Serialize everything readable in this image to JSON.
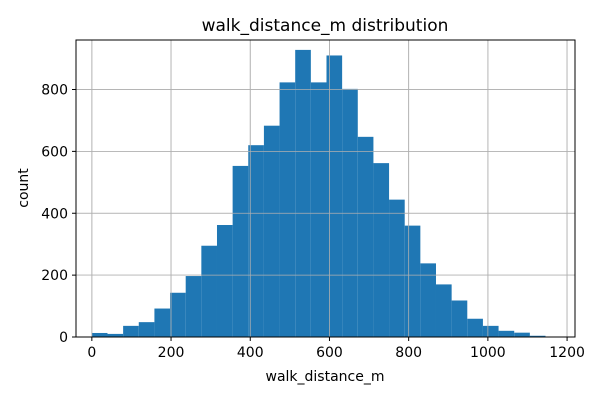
{
  "chart_data": {
    "type": "bar",
    "title": "walk_distance_m distribution",
    "xlabel": "walk_distance_m",
    "ylabel": "count",
    "xlim": [
      -40,
      1220
    ],
    "ylim": [
      0,
      960
    ],
    "xticks": [
      0,
      200,
      400,
      600,
      800,
      1000,
      1200
    ],
    "yticks": [
      0,
      200,
      400,
      600,
      800
    ],
    "grid": true,
    "bar_color": "#1f77b4",
    "bins": [
      {
        "x0": 0,
        "x1": 39.5,
        "count": 13
      },
      {
        "x0": 39.5,
        "x1": 79,
        "count": 10
      },
      {
        "x0": 79,
        "x1": 118.5,
        "count": 36
      },
      {
        "x0": 118.5,
        "x1": 158,
        "count": 48
      },
      {
        "x0": 158,
        "x1": 197.5,
        "count": 92
      },
      {
        "x0": 197.5,
        "x1": 237,
        "count": 143
      },
      {
        "x0": 237,
        "x1": 276.5,
        "count": 197
      },
      {
        "x0": 276.5,
        "x1": 316,
        "count": 295
      },
      {
        "x0": 316,
        "x1": 355.5,
        "count": 362
      },
      {
        "x0": 355.5,
        "x1": 395,
        "count": 553
      },
      {
        "x0": 395,
        "x1": 434.5,
        "count": 620
      },
      {
        "x0": 434.5,
        "x1": 474,
        "count": 683
      },
      {
        "x0": 474,
        "x1": 513.5,
        "count": 823
      },
      {
        "x0": 513.5,
        "x1": 553,
        "count": 928
      },
      {
        "x0": 553,
        "x1": 592.5,
        "count": 823
      },
      {
        "x0": 592.5,
        "x1": 632,
        "count": 910
      },
      {
        "x0": 632,
        "x1": 671.5,
        "count": 802
      },
      {
        "x0": 671.5,
        "x1": 711,
        "count": 647
      },
      {
        "x0": 711,
        "x1": 750.5,
        "count": 562
      },
      {
        "x0": 750.5,
        "x1": 790,
        "count": 444
      },
      {
        "x0": 790,
        "x1": 829.5,
        "count": 360
      },
      {
        "x0": 829.5,
        "x1": 869,
        "count": 238
      },
      {
        "x0": 869,
        "x1": 908.5,
        "count": 170
      },
      {
        "x0": 908.5,
        "x1": 948,
        "count": 118
      },
      {
        "x0": 948,
        "x1": 987.5,
        "count": 59
      },
      {
        "x0": 987.5,
        "x1": 1027,
        "count": 36
      },
      {
        "x0": 1027,
        "x1": 1066.5,
        "count": 20
      },
      {
        "x0": 1066.5,
        "x1": 1106,
        "count": 14
      },
      {
        "x0": 1106,
        "x1": 1145.5,
        "count": 4
      },
      {
        "x0": 1145.5,
        "x1": 1185,
        "count": 1
      }
    ]
  }
}
